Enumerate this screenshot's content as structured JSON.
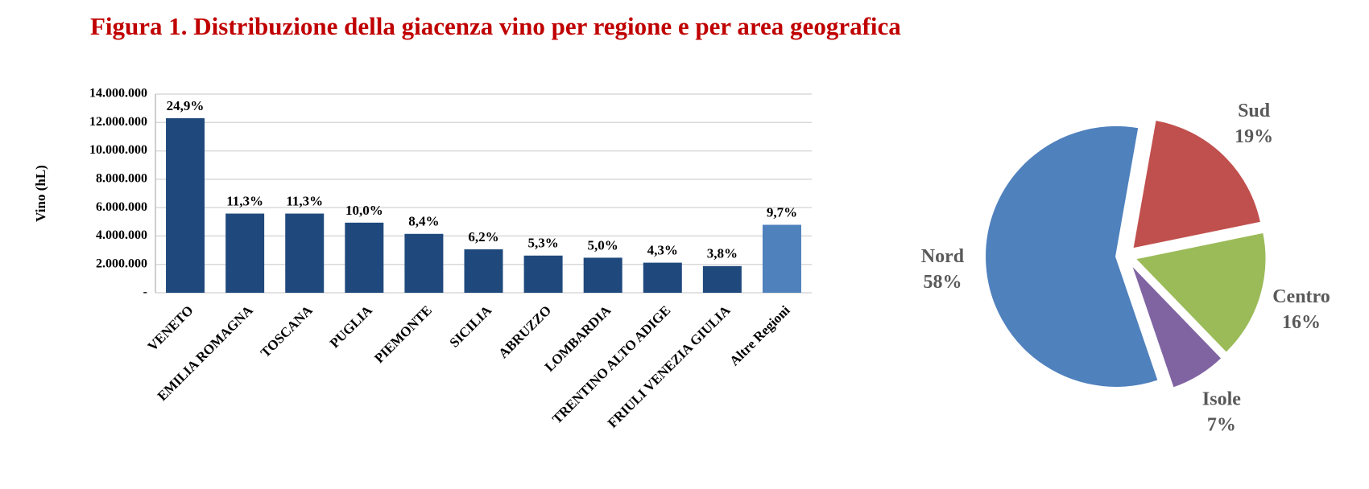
{
  "title": "Figura 1. Distribuzione della giacenza vino per regione e per area geografica",
  "chart_data": [
    {
      "type": "bar",
      "y_label": "Vino (hL)",
      "categories": [
        "VENETO",
        "EMILIA ROMAGNA",
        "TOSCANA",
        "PUGLIA",
        "PIEMONTE",
        "SICILIA",
        "ABRUZZO",
        "LOMBARDIA",
        "TRENTINO ALTO ADIGE",
        "FRIULI VENEZIA GIULIA",
        "Altre Regioni"
      ],
      "values": [
        12300000,
        5580000,
        5580000,
        4940000,
        4150000,
        3060000,
        2620000,
        2470000,
        2120000,
        1880000,
        4790000
      ],
      "bar_labels": [
        "24,9%",
        "11,3%",
        "11,3%",
        "10,0%",
        "8,4%",
        "6,2%",
        "5,3%",
        "5,0%",
        "4,3%",
        "3,8%",
        "9,7%"
      ],
      "colors": [
        "#1f497d",
        "#1f497d",
        "#1f497d",
        "#1f497d",
        "#1f497d",
        "#1f497d",
        "#1f497d",
        "#1f497d",
        "#1f497d",
        "#1f497d",
        "#4f81bd"
      ],
      "ylim": [
        0,
        14000000
      ],
      "yticks": [
        {
          "value": 0,
          "label": "-"
        },
        {
          "value": 2000000,
          "label": "2.000.000"
        },
        {
          "value": 4000000,
          "label": "4.000.000"
        },
        {
          "value": 6000000,
          "label": "6.000.000"
        },
        {
          "value": 8000000,
          "label": "8.000.000"
        },
        {
          "value": 10000000,
          "label": "10.000.000"
        },
        {
          "value": 12000000,
          "label": "12.000.000"
        },
        {
          "value": 14000000,
          "label": "14.000.000"
        }
      ],
      "grid": true
    },
    {
      "type": "pie",
      "categories": [
        "Sud",
        "Centro",
        "Isole",
        "Nord"
      ],
      "values": [
        19,
        16,
        7,
        58
      ],
      "value_labels": [
        "19%",
        "16%",
        "7%",
        "58%"
      ],
      "colors": [
        "#c0504d",
        "#9bbb59",
        "#8064a2",
        "#4f81bd"
      ],
      "exploded": true
    }
  ]
}
